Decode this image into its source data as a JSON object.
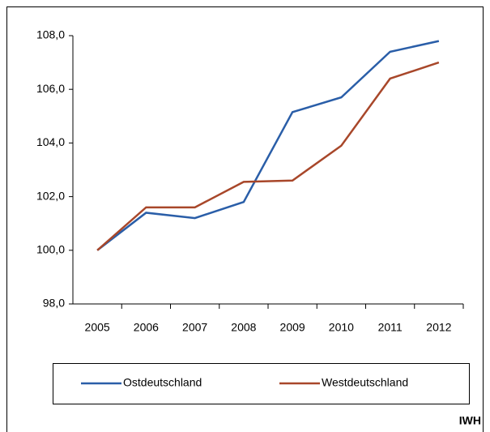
{
  "chart_data": {
    "type": "line",
    "categories": [
      "2005",
      "2006",
      "2007",
      "2008",
      "2009",
      "2010",
      "2011",
      "2012"
    ],
    "series": [
      {
        "name": "Ostdeutschland",
        "color": "#2a5ea8",
        "values": [
          100.0,
          101.4,
          101.2,
          101.8,
          105.15,
          105.7,
          107.4,
          107.8
        ]
      },
      {
        "name": "Westdeutschland",
        "color": "#a8472a",
        "values": [
          100.0,
          101.6,
          101.6,
          102.55,
          102.6,
          103.9,
          106.4,
          107.0
        ]
      }
    ],
    "ylim": [
      98,
      108
    ],
    "yticks": [
      {
        "value": 98,
        "label": "98,0"
      },
      {
        "value": 100,
        "label": "100,0"
      },
      {
        "value": 102,
        "label": "102,0"
      },
      {
        "value": 104,
        "label": "104,0"
      },
      {
        "value": 106,
        "label": "106,0"
      },
      {
        "value": 108,
        "label": "108,0"
      }
    ],
    "grid": false,
    "legend": "bottom",
    "source": "IWH"
  }
}
